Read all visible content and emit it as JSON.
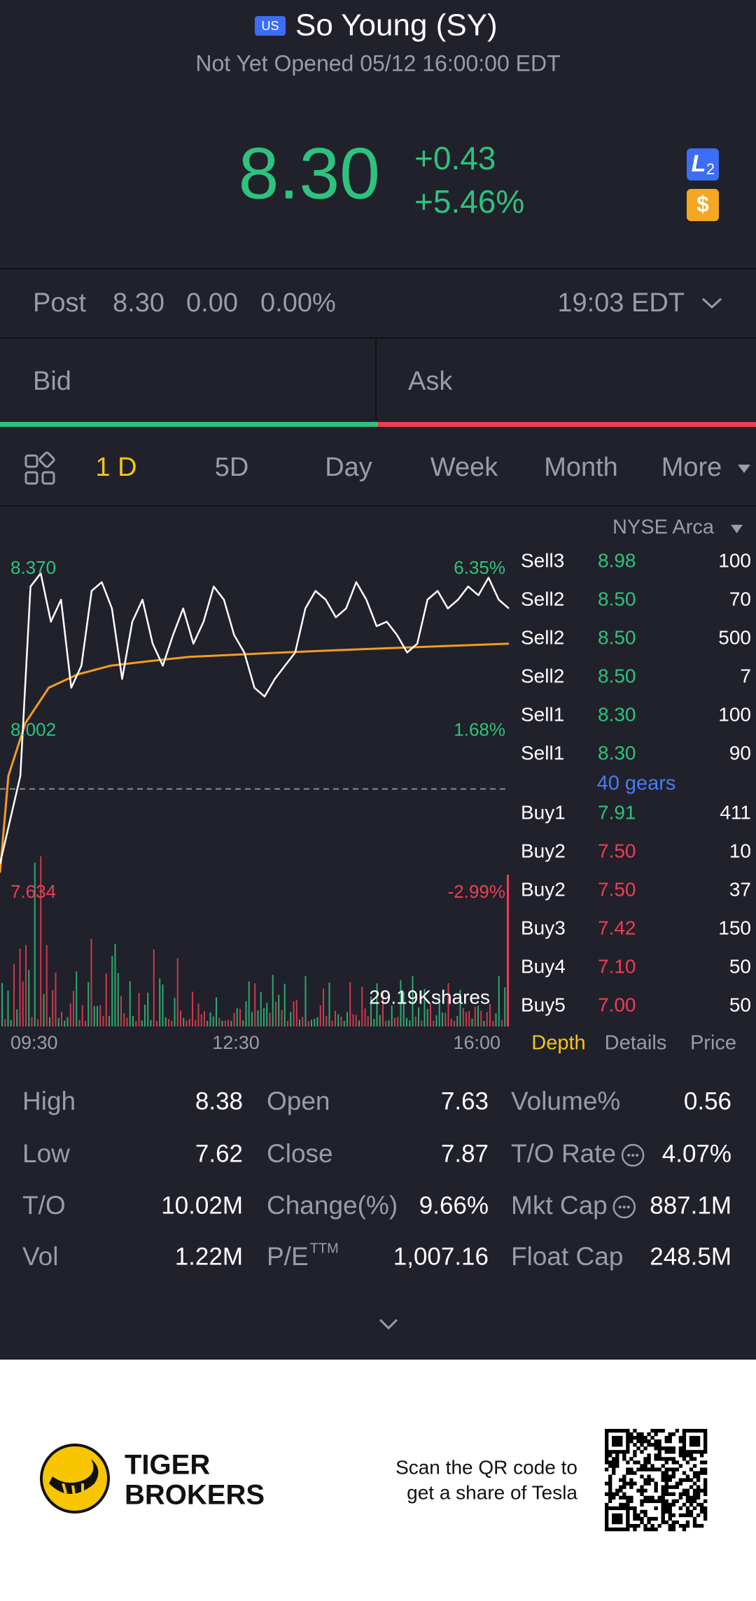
{
  "header": {
    "badge": "US",
    "title": "So Young (SY)",
    "status": "Not Yet Opened 05/12 16:00:00 EDT"
  },
  "quote": {
    "price": "8.30",
    "change": "+0.43",
    "change_pct": "+5.46%",
    "level_badge": {
      "letter": "L",
      "digit": "2"
    },
    "currency_badge": "$"
  },
  "post": {
    "label": "Post",
    "price": "8.30",
    "change": "0.00",
    "change_pct": "0.00%",
    "time": "19:03 EDT"
  },
  "bid_ask": [
    "Bid",
    "Ask"
  ],
  "tabs": {
    "items": [
      "1 D",
      "5D",
      "Day",
      "Week",
      "Month",
      "More"
    ],
    "active": 0
  },
  "chart": {
    "exchange": "NYSE Arca",
    "ylim": [
      7.634,
      8.37
    ],
    "yticks": [
      {
        "value": 8.37,
        "label": "8.370"
      },
      {
        "value": 8.002,
        "label": "8.002"
      },
      {
        "value": 7.634,
        "label": "7.634"
      }
    ],
    "y2lim": [
      -2.99,
      6.35
    ],
    "y2ticks": [
      {
        "value": 6.35,
        "label": "6.35%"
      },
      {
        "value": 1.68,
        "label": "1.68%"
      },
      {
        "value": -2.99,
        "label": "-2.99%"
      }
    ],
    "price": [
      7.7,
      7.8,
      7.9,
      8.33,
      8.36,
      8.25,
      8.3,
      8.1,
      8.15,
      8.32,
      8.34,
      8.28,
      8.12,
      8.25,
      8.3,
      8.2,
      8.15,
      8.22,
      8.28,
      8.2,
      8.25,
      8.33,
      8.3,
      8.22,
      8.18,
      8.1,
      8.08,
      8.12,
      8.15,
      8.18,
      8.28,
      8.32,
      8.3,
      8.26,
      8.28,
      8.34,
      8.3,
      8.24,
      8.25,
      8.22,
      8.18,
      8.2,
      8.3,
      8.32,
      8.28,
      8.3,
      8.33,
      8.31,
      8.35,
      8.3,
      8.28
    ],
    "avg": [
      7.68,
      7.9,
      8.02,
      8.1,
      8.13,
      8.15,
      8.16,
      8.17,
      8.175,
      8.18,
      8.185,
      8.19,
      8.195,
      8.2
    ],
    "volume_label": "29.19Kshares",
    "times": [
      "09:30",
      "12:30",
      "16:00"
    ]
  },
  "order_book": {
    "asks": [
      {
        "side": "Sell3",
        "price": "8.98",
        "size": "100",
        "color": "#2ec27e"
      },
      {
        "side": "Sell2",
        "price": "8.50",
        "size": "70",
        "color": "#2ec27e"
      },
      {
        "side": "Sell2",
        "price": "8.50",
        "size": "500",
        "color": "#2ec27e"
      },
      {
        "side": "Sell2",
        "price": "8.50",
        "size": "7",
        "color": "#2ec27e"
      },
      {
        "side": "Sell1",
        "price": "8.30",
        "size": "100",
        "color": "#2ec27e"
      },
      {
        "side": "Sell1",
        "price": "8.30",
        "size": "90",
        "color": "#2ec27e"
      }
    ],
    "gears": "40 gears",
    "bids": [
      {
        "side": "Buy1",
        "price": "7.91",
        "size": "411",
        "color": "#2ec27e"
      },
      {
        "side": "Buy2",
        "price": "7.50",
        "size": "10",
        "color": "#ef3d55"
      },
      {
        "side": "Buy2",
        "price": "7.50",
        "size": "37",
        "color": "#ef3d55"
      },
      {
        "side": "Buy3",
        "price": "7.42",
        "size": "150",
        "color": "#ef3d55"
      },
      {
        "side": "Buy4",
        "price": "7.10",
        "size": "50",
        "color": "#ef3d55"
      },
      {
        "side": "Buy5",
        "price": "7.00",
        "size": "50",
        "color": "#ef3d55"
      }
    ],
    "tabs": [
      "Depth",
      "Details",
      "Price"
    ],
    "active": 0
  },
  "stats": {
    "rows": [
      [
        {
          "label": "High",
          "value": "8.38"
        },
        {
          "label": "Open",
          "value": "7.63"
        },
        {
          "label": "Volume%",
          "value": "0.56"
        }
      ],
      [
        {
          "label": "Low",
          "value": "7.62"
        },
        {
          "label": "Close",
          "value": "7.87"
        },
        {
          "label": "T/O Rate",
          "value": "4.07%",
          "info": true
        }
      ],
      [
        {
          "label": "T/O",
          "value": "10.02M"
        },
        {
          "label": "Change(%)",
          "value": "9.66%"
        },
        {
          "label": "Mkt Cap",
          "value": "887.1M",
          "info": true
        }
      ],
      [
        {
          "label": "Vol",
          "value": "1.22M"
        },
        {
          "label": "P/E",
          "sup": "TTM",
          "value": "1,007.16"
        },
        {
          "label": "Float Cap",
          "value": "248.5M"
        }
      ]
    ]
  },
  "footer": {
    "brand": [
      "TIGER",
      "BROKERS"
    ],
    "promo": [
      "Scan the QR code to",
      "get a share of Tesla"
    ]
  }
}
